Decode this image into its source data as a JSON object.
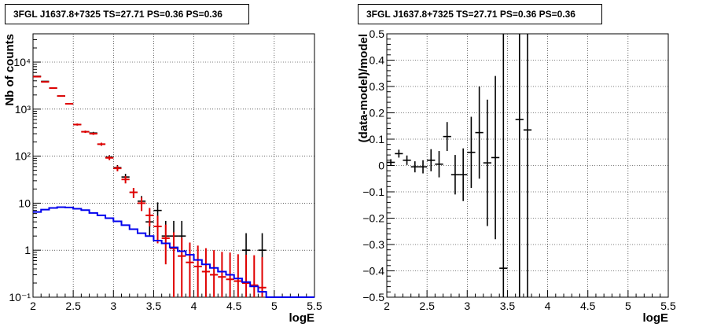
{
  "chart_data": [
    {
      "type": "step",
      "title": "3FGL J1637.8+7325 TS=27.71 PS=0.36 PS=0.36",
      "xlabel": "logE",
      "ylabel": "Nb of counts",
      "xlim": [
        2,
        5.5
      ],
      "ylim": [
        0.1,
        40000
      ],
      "yscale": "log",
      "grid": true,
      "x_ticks": [
        2,
        2.5,
        3,
        3.5,
        4,
        4.5,
        5,
        5.5
      ],
      "x_tick_labels": [
        "2",
        "2.5",
        "3",
        "3.5",
        "4",
        "4.5",
        "5",
        "5.5"
      ],
      "y_ticks": [
        0.1,
        1,
        10,
        100,
        1000,
        10000
      ],
      "y_tick_labels": [
        "10⁻¹",
        "1",
        "10",
        "10²",
        "10³",
        "10⁴"
      ],
      "bin_width": 0.1,
      "series": [
        {
          "role": "data",
          "color": "#000000",
          "x": [
            2.05,
            2.15,
            2.25,
            2.35,
            2.45,
            2.55,
            2.65,
            2.75,
            2.85,
            2.95,
            3.05,
            3.15,
            3.25,
            3.35,
            3.45,
            3.55,
            3.65,
            3.75,
            3.85,
            4.65,
            4.85
          ],
          "y": [
            5000,
            3900,
            2800,
            1900,
            1300,
            470,
            330,
            310,
            180,
            95,
            57,
            36,
            17,
            11,
            4,
            7,
            2,
            2,
            2,
            1,
            1
          ],
          "yerr_low": [
            70,
            62,
            53,
            43,
            36,
            22,
            18,
            18,
            13,
            10,
            7.5,
            6,
            4,
            3.2,
            2,
            2.6,
            1.4,
            1.4,
            1.4,
            0.8,
            0.8
          ],
          "yerr_high": [
            70,
            62,
            53,
            43,
            36,
            22,
            18,
            18,
            13,
            10,
            7.5,
            6,
            4,
            3.2,
            2.6,
            3.4,
            2.2,
            2.2,
            2.2,
            1.3,
            1.3
          ]
        },
        {
          "role": "model",
          "color": "#e00000",
          "x": [
            2.05,
            2.15,
            2.25,
            2.35,
            2.45,
            2.55,
            2.65,
            2.75,
            2.85,
            2.95,
            3.05,
            3.15,
            3.25,
            3.35,
            3.45,
            3.55,
            3.65,
            3.75,
            3.85,
            3.95,
            4.05,
            4.15,
            4.25,
            4.35,
            4.45,
            4.55,
            4.65,
            4.75,
            4.85
          ],
          "y": [
            4900,
            3800,
            2800,
            1900,
            1300,
            470,
            330,
            300,
            180,
            92,
            55,
            32,
            17,
            10,
            5.5,
            3.2,
            1.8,
            1.1,
            0.75,
            0.55,
            0.45,
            0.35,
            0.3,
            0.27,
            0.24,
            0.22,
            0.2,
            0.18,
            0.16
          ],
          "yerr_low": [
            70,
            62,
            53,
            43,
            36,
            22,
            18,
            17,
            13,
            9.6,
            7.4,
            5.7,
            4.1,
            3.2,
            2.3,
            1.8,
            1.3,
            1.0,
            0.65,
            0.45,
            0.35,
            0.25,
            0.2,
            0.17,
            0.14,
            0.12,
            0.1,
            0.08,
            0.06
          ],
          "yerr_high": [
            70,
            62,
            53,
            43,
            36,
            22,
            18,
            17,
            13,
            9.6,
            7.4,
            5.7,
            4.1,
            3.2,
            2.4,
            2.2,
            1.7,
            1.3,
            1.1,
            0.9,
            0.8,
            0.75,
            0.7,
            0.65,
            0.65,
            0.6,
            0.6,
            0.6,
            0.55
          ]
        },
        {
          "role": "component",
          "color": "#0000ee",
          "edges": [
            2.0,
            2.1,
            2.2,
            2.3,
            2.4,
            2.5,
            2.6,
            2.7,
            2.8,
            2.9,
            3.0,
            3.1,
            3.2,
            3.3,
            3.4,
            3.5,
            3.6,
            3.7,
            3.8,
            3.9,
            4.0,
            4.1,
            4.2,
            4.3,
            4.4,
            4.5,
            4.6,
            4.7,
            4.8,
            4.9,
            5.0,
            5.1,
            5.2,
            5.3,
            5.4,
            5.5
          ],
          "values": [
            6.5,
            7.3,
            7.9,
            8.2,
            8.1,
            7.6,
            7.1,
            6.2,
            5.5,
            4.8,
            4.1,
            3.4,
            2.8,
            2.3,
            2.0,
            1.6,
            1.4,
            1.15,
            0.95,
            0.8,
            0.62,
            0.5,
            0.42,
            0.35,
            0.3,
            0.25,
            0.21,
            0.17,
            0.13,
            0.1,
            0.1,
            0.1,
            0.1,
            0.1,
            0.1
          ]
        }
      ]
    },
    {
      "type": "scatter",
      "title": "3FGL J1637.8+7325 TS=27.71 PS=0.36 PS=0.36",
      "xlabel": "logE",
      "ylabel": "(data-model)/model",
      "xlim": [
        2,
        5.5
      ],
      "ylim": [
        -0.5,
        0.5
      ],
      "grid": true,
      "x_ticks": [
        2,
        2.5,
        3,
        3.5,
        4,
        4.5,
        5,
        5.5
      ],
      "x_tick_labels": [
        "2",
        "2.5",
        "3",
        "3.5",
        "4",
        "4.5",
        "5",
        "5.5"
      ],
      "y_ticks": [
        -0.5,
        -0.4,
        -0.3,
        -0.2,
        -0.1,
        0,
        0.1,
        0.2,
        0.3,
        0.4,
        0.5
      ],
      "y_tick_labels": [
        "−0.5",
        "−0.4",
        "−0.3",
        "−0.2",
        "−0.1",
        "0",
        "0.1",
        "0.2",
        "0.3",
        "0.4",
        "0.5"
      ],
      "bin_width": 0.1,
      "series": [
        {
          "color": "#000000",
          "x": [
            2.05,
            2.15,
            2.25,
            2.35,
            2.45,
            2.55,
            2.65,
            2.75,
            2.85,
            2.95,
            3.05,
            3.15,
            3.25,
            3.35,
            3.45,
            3.65,
            3.75
          ],
          "y": [
            0.012,
            0.045,
            0.02,
            -0.005,
            -0.005,
            0.02,
            0.005,
            0.11,
            -0.035,
            -0.035,
            0.05,
            0.125,
            0.01,
            0.03,
            -0.39,
            0.175,
            0.135
          ],
          "yerr": [
            0.012,
            0.015,
            0.018,
            0.021,
            0.025,
            0.042,
            0.05,
            0.055,
            0.075,
            0.1,
            0.135,
            0.175,
            0.24,
            0.31,
            0.9,
            1.0,
            1.0
          ]
        }
      ]
    }
  ]
}
